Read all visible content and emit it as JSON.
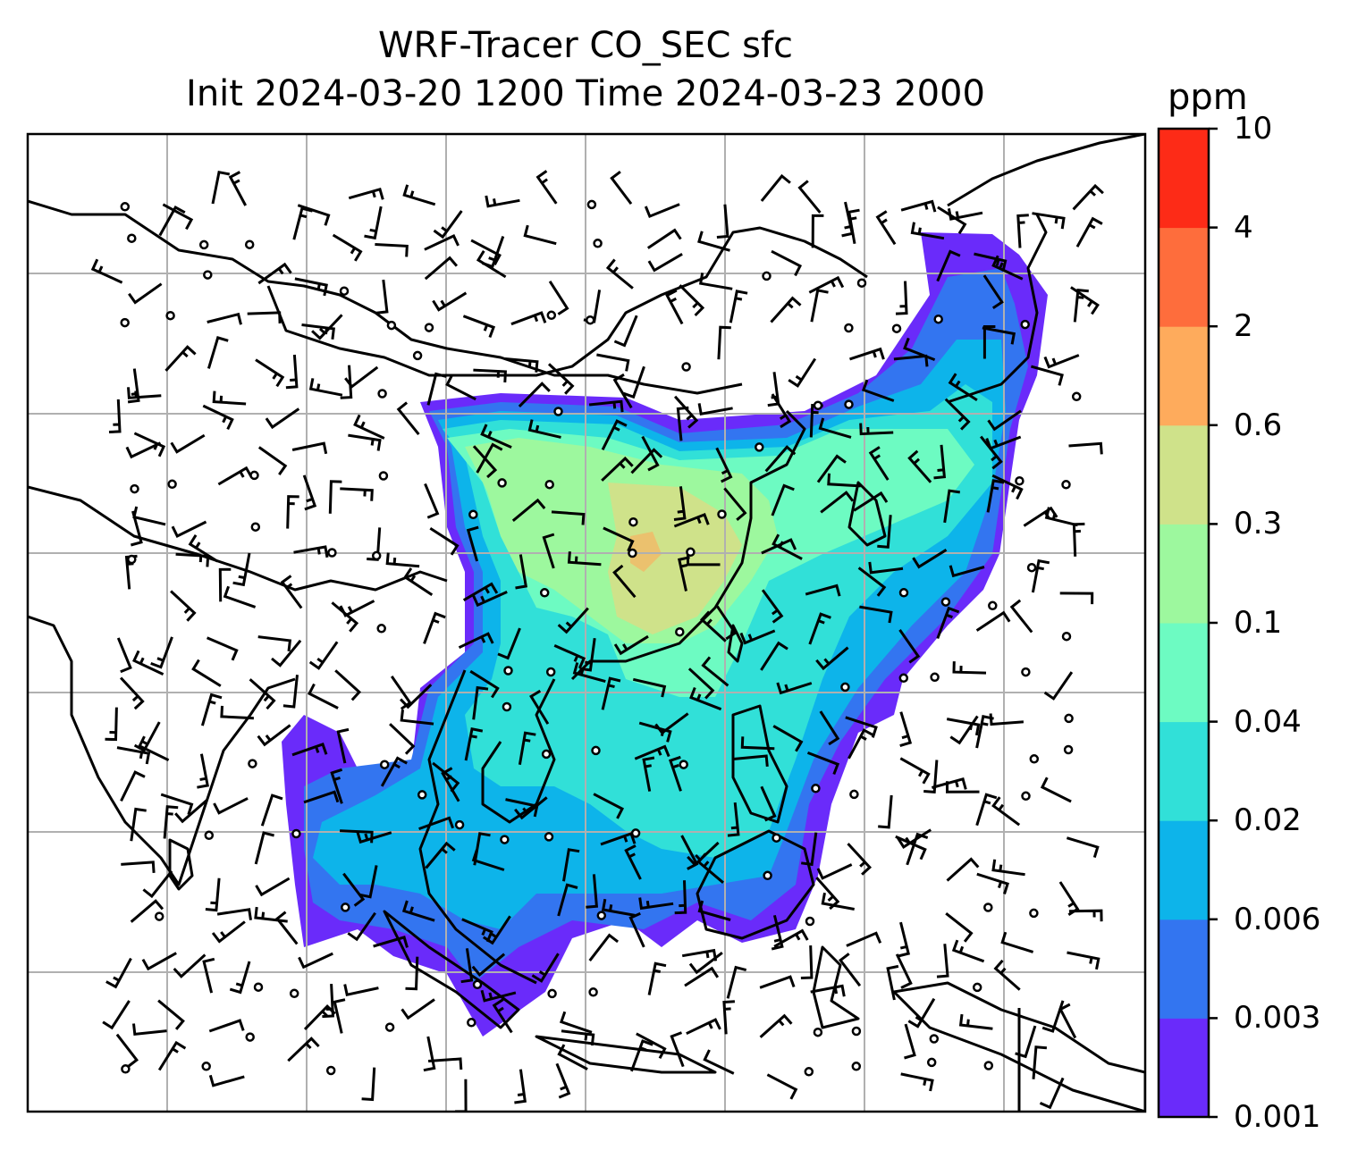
{
  "title": {
    "line1": "WRF-Tracer CO_SEC sfc",
    "line2": "Init 2024-03-20 1200 Time 2024-03-23 2000"
  },
  "chart_data": {
    "type": "heatmap",
    "title": "WRF-Tracer CO_SEC sfc",
    "subtitle": "Init 2024-03-20 1200 Time 2024-03-23 2000",
    "xlabel": "",
    "ylabel": "",
    "grid": true,
    "overlay": "wind barbs and calm-wind circles over coastlines/borders of East and Southeast Asia",
    "colorbar": {
      "unit": "ppm",
      "levels": [
        "0.001",
        "0.003",
        "0.006",
        "0.02",
        "0.04",
        "0.1",
        "0.3",
        "0.6",
        "2",
        "4",
        "10"
      ],
      "colors": [
        "#6a2bfa",
        "#3375f0",
        "#0db4ea",
        "#31e0d8",
        "#6dfbc2",
        "#9df89e",
        "#cfe28a",
        "#feab5c",
        "#fe6d3c",
        "#fd2b17"
      ]
    }
  }
}
